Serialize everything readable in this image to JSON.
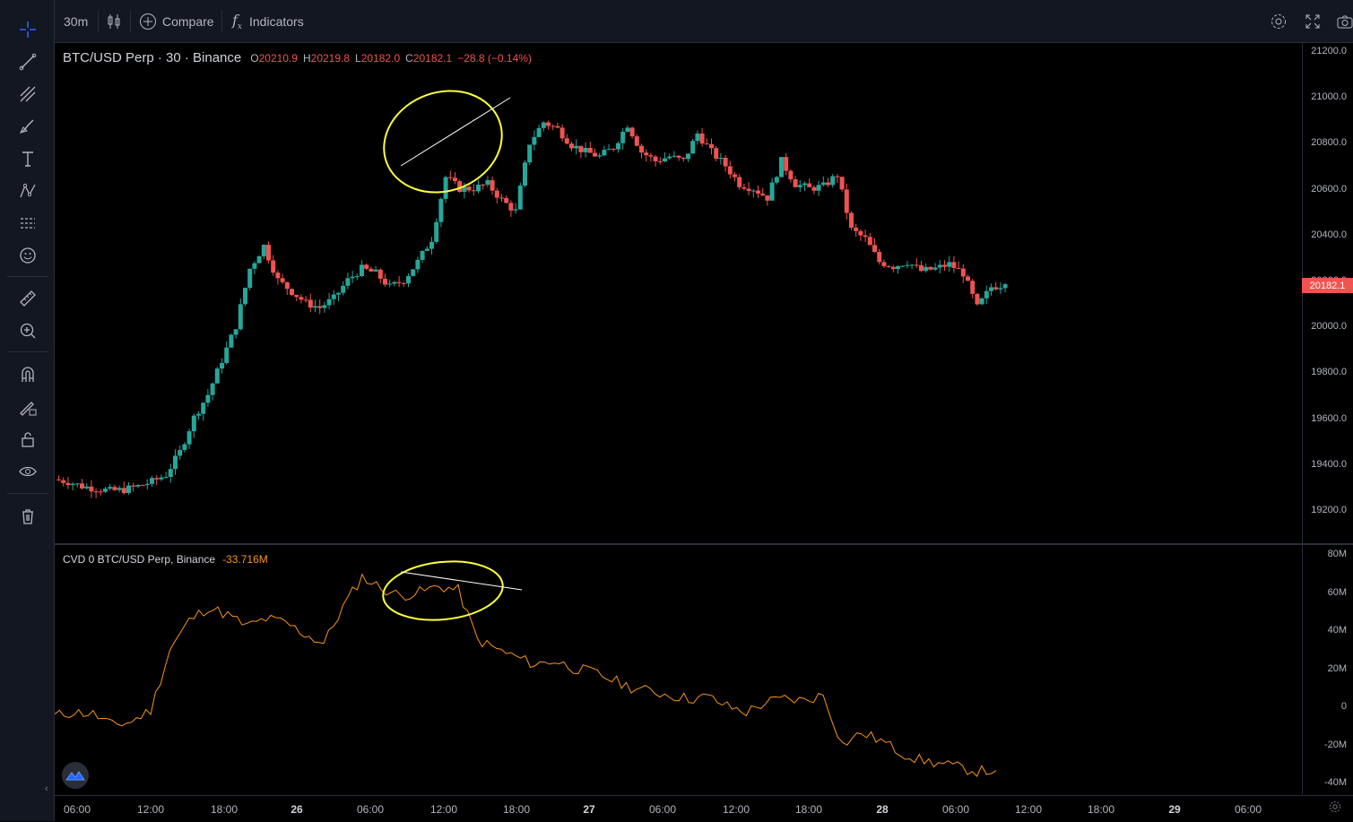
{
  "toolbar": {
    "interval": "30m",
    "compare_label": "Compare",
    "indicators_label": "Indicators",
    "left_tools": [
      "crosshair-icon",
      "trend-line-icon",
      "fib-icon",
      "brush-icon",
      "text-icon",
      "pattern-icon",
      "forecast-icon",
      "emoji-icon",
      "ruler-icon",
      "zoom-in-icon",
      "magnet-icon",
      "lock-drawing-icon",
      "unlock-icon",
      "eye-icon",
      "trash-icon"
    ],
    "right_tools": [
      "settings-icon",
      "fullscreen-icon",
      "camera-icon"
    ]
  },
  "legend": {
    "symbol": "BTC/USD Perp · 30 · Binance",
    "o_key": "O",
    "o_val": "20210.9",
    "h_key": "H",
    "h_val": "20219.8",
    "l_key": "L",
    "l_val": "20182.0",
    "c_key": "C",
    "c_val": "20182.1",
    "change": "−28.8 (−0.14%)"
  },
  "cvd_legend": {
    "title": "CVD 0 BTC/USD Perp, Binance",
    "value": "-33.716M"
  },
  "price_axis": {
    "labels": [
      "21200.0",
      "21000.0",
      "20800.0",
      "20600.0",
      "20400.0",
      "20200.0",
      "20000.0",
      "19800.0",
      "19600.0",
      "19400.0",
      "19200.0"
    ],
    "last_price": "20182.1"
  },
  "cvd_axis": {
    "labels": [
      "80M",
      "60M",
      "40M",
      "20M",
      "0",
      "-20M",
      "-40M"
    ]
  },
  "time_axis": {
    "labels": [
      "06:00",
      "12:00",
      "18:00",
      "26",
      "06:00",
      "12:00",
      "18:00",
      "27",
      "06:00",
      "12:00",
      "18:00",
      "28",
      "06:00",
      "12:00",
      "18:00",
      "29",
      "06:00"
    ],
    "bold": [
      "26",
      "27",
      "28",
      "29"
    ]
  },
  "colors": {
    "up": "#26a69a",
    "down": "#ef5350",
    "cvd_line": "#f7931a",
    "annotation": "#ffff3b",
    "background": "#000000"
  },
  "chart_data": [
    {
      "type": "candlestick",
      "title": "BTC/USD Perp · 30 · Binance",
      "interval": "30m",
      "ylim": [
        19100,
        21250
      ],
      "x_ticks": [
        "06:00",
        "12:00",
        "18:00",
        "26",
        "06:00",
        "12:00",
        "18:00",
        "27",
        "06:00",
        "12:00",
        "18:00",
        "28",
        "06:00",
        "12:00",
        "18:00",
        "29",
        "06:00"
      ],
      "last": {
        "open": 20210.9,
        "high": 20219.8,
        "low": 20182.0,
        "close": 20182.1
      },
      "close_path": [
        19330,
        19320,
        19300,
        19290,
        19280,
        19285,
        19300,
        19320,
        19350,
        19450,
        19600,
        19700,
        19850,
        20000,
        20250,
        20350,
        20200,
        20150,
        20100,
        20080,
        20120,
        20200,
        20250,
        20230,
        20170,
        20200,
        20280,
        20380,
        20650,
        20600,
        20600,
        20620,
        20550,
        20500,
        20800,
        20890,
        20860,
        20790,
        20760,
        20740,
        20780,
        20880,
        20760,
        20720,
        20740,
        20720,
        20840,
        20760,
        20700,
        20620,
        20600,
        20560,
        20720,
        20620,
        20600,
        20610,
        20660,
        20420,
        20380,
        20280,
        20260,
        20280,
        20240,
        20250,
        20270,
        20230,
        20080,
        20170,
        20182.1
      ]
    },
    {
      "type": "line",
      "title": "CVD 0 BTC/USD Perp, Binance",
      "last_value": "-33.716M",
      "ylim": [
        -40,
        80
      ],
      "series": [
        {
          "name": "CVD",
          "values": [
            -5,
            -3,
            -4,
            -10,
            -8,
            -2,
            30,
            45,
            52,
            48,
            42,
            46,
            44,
            38,
            33,
            52,
            68,
            62,
            58,
            60,
            63,
            61,
            35,
            30,
            26,
            22,
            24,
            20,
            18,
            14,
            10,
            8,
            6,
            4,
            5,
            0,
            -3,
            2,
            4,
            3,
            6,
            -20,
            -14,
            -18,
            -24,
            -28,
            -30,
            -32,
            -34,
            -33.716
          ]
        }
      ]
    }
  ]
}
